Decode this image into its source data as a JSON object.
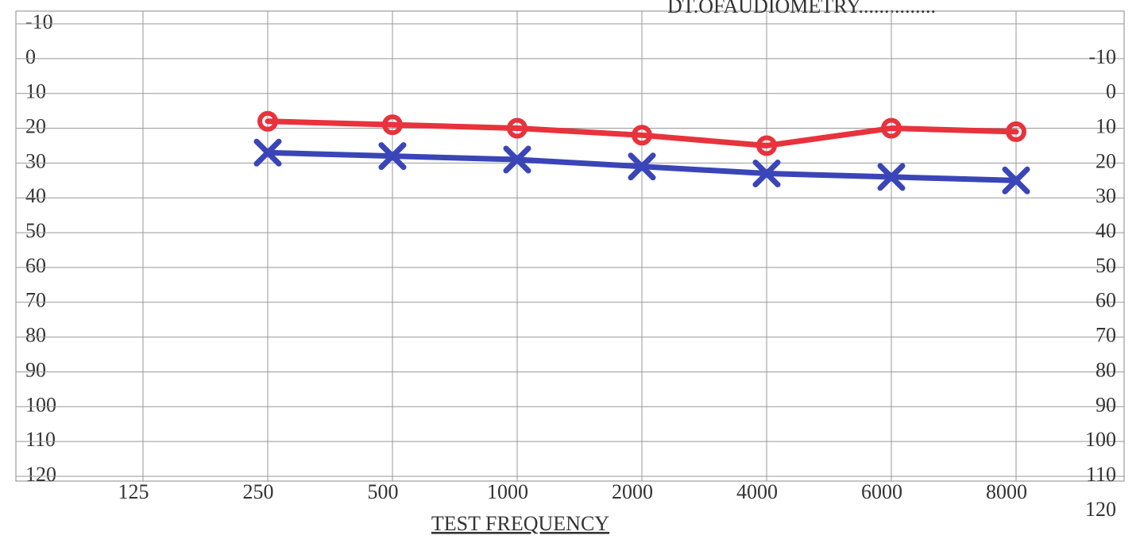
{
  "chart_data": {
    "type": "line",
    "title": "DT.OFAUDIOMETRY...............",
    "x_label": "TEST FREQUENCY",
    "categories": [
      "125",
      "250",
      "500",
      "1000",
      "2000",
      "4000",
      "6000",
      "8000"
    ],
    "series": [
      {
        "color": "#e8323c",
        "marker": "circle",
        "values": [
          null,
          18,
          19,
          20,
          22,
          25,
          20,
          21
        ]
      },
      {
        "color": "#3a45b8",
        "marker": "cross",
        "values": [
          null,
          27,
          28,
          29,
          31,
          33,
          34,
          35
        ]
      }
    ],
    "ylim": [
      -10,
      120
    ],
    "yticks": [
      -10,
      0,
      10,
      20,
      30,
      40,
      50,
      60,
      70,
      80,
      90,
      100,
      110,
      120
    ],
    "y2lim": [
      -20,
      110
    ],
    "y2ticks": [
      -10,
      0,
      10,
      20,
      30,
      40,
      50,
      60,
      70,
      80,
      90,
      100,
      110,
      120
    ],
    "grid": true
  }
}
